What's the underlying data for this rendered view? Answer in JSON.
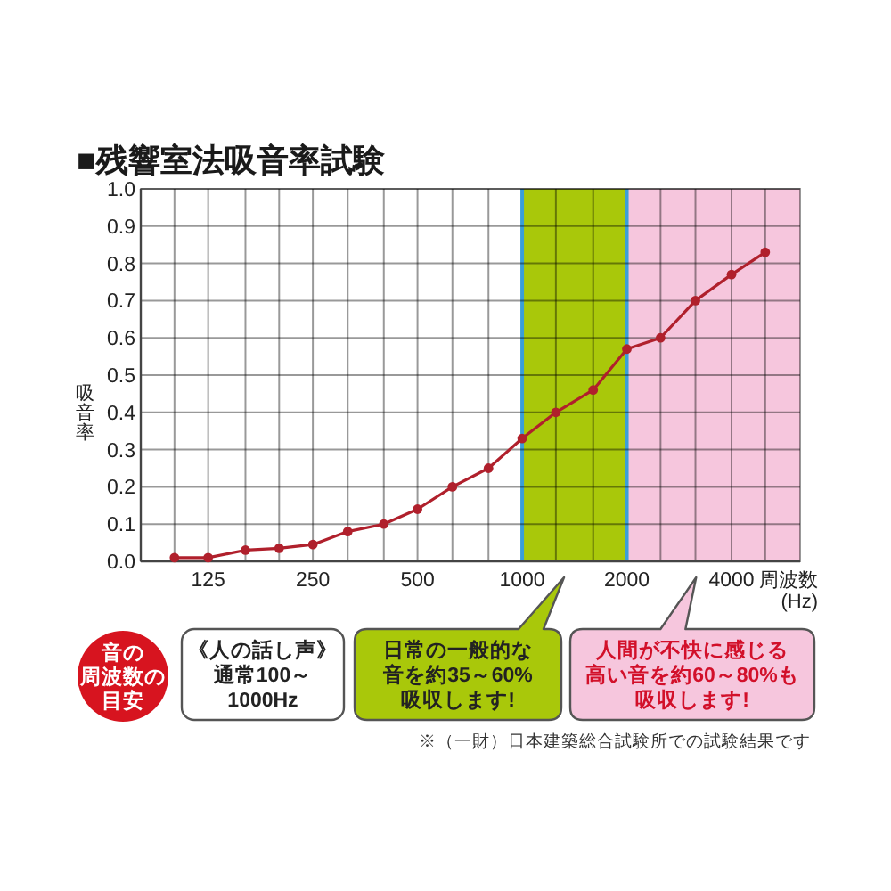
{
  "chart_data": {
    "type": "line",
    "title": "■残響室法吸音率試験",
    "xlabel": "周波数 (Hz)",
    "ylabel": "吸音率",
    "x": [
      100,
      125,
      160,
      200,
      250,
      315,
      400,
      500,
      630,
      800,
      1000,
      1250,
      1600,
      2000,
      2500,
      3150,
      4000,
      5000
    ],
    "values": [
      0.01,
      0.01,
      0.03,
      0.035,
      0.045,
      0.08,
      0.1,
      0.14,
      0.2,
      0.25,
      0.33,
      0.4,
      0.46,
      0.57,
      0.6,
      0.7,
      0.77,
      0.83
    ],
    "color": "#b0202c",
    "marker": "circle",
    "line_style": "solid",
    "log": "x",
    "grid": true,
    "xlim": [
      80,
      6300
    ],
    "xticks": [
      {
        "value": 100,
        "label": null
      },
      125,
      {
        "value": 160,
        "label": null
      },
      {
        "value": 200,
        "label": null
      },
      250,
      {
        "value": 315,
        "label": null
      },
      {
        "value": 400,
        "label": null
      },
      500,
      {
        "value": 630,
        "label": null
      },
      {
        "value": 800,
        "label": null
      },
      1000,
      {
        "value": 1250,
        "label": null
      },
      {
        "value": 1600,
        "label": null
      },
      2000,
      {
        "value": 2500,
        "label": null
      },
      {
        "value": 3150,
        "label": null
      },
      4000,
      {
        "value": 5000,
        "label": null
      }
    ],
    "ylim": [
      0,
      1
    ],
    "yticks": [
      {
        "value": 0,
        "label": "0.0"
      },
      0.1,
      0.2,
      0.3,
      0.4,
      0.5,
      0.6,
      0.7,
      0.8,
      0.9,
      {
        "value": 1,
        "label": "1.0"
      }
    ],
    "bands": [
      {
        "axis": "x",
        "from": 1000,
        "to": 2000,
        "color": "#a9c80a"
      },
      {
        "axis": "x",
        "from": 2000,
        "to": 6300,
        "color": "#f6c6dd"
      }
    ],
    "annotations": [
      "音の周波数の目安",
      "《人の話し声》通常100～1000Hz",
      "日常の一般的な音を約35～60%吸収します!",
      "人間が不快に感じる高い音を約60～80%も吸収します!",
      "※（一財）日本建築総合試験所での試験結果です"
    ]
  }
}
